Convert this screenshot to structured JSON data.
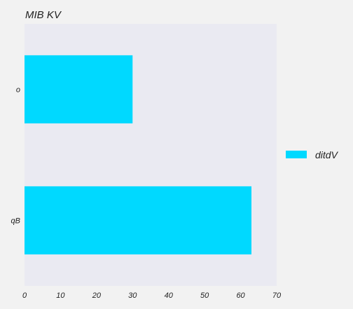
{
  "chart_data": {
    "type": "bar",
    "orientation": "horizontal",
    "title": "MIB KV",
    "xlabel": "",
    "ylabel": "",
    "categories": [
      "o",
      "qB"
    ],
    "series": [
      {
        "name": "ditdV",
        "values": [
          30,
          63
        ],
        "color": "#00d9ff"
      }
    ],
    "xlim": [
      0,
      70
    ],
    "xticks": [
      0,
      10,
      20,
      30,
      40,
      50,
      60,
      70
    ],
    "grid": false,
    "legend_position": "right",
    "plot_background": "#eaeaf2",
    "page_background": "#f2f2f2"
  }
}
